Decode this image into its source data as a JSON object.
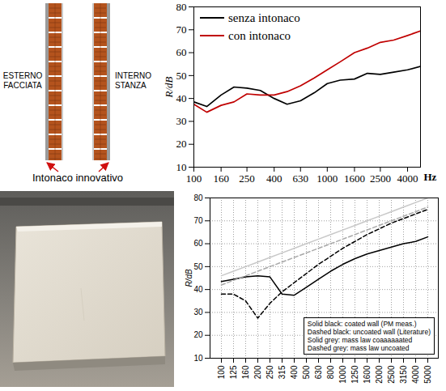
{
  "diagram": {
    "left_label": "ESTERNO FACCIATA",
    "right_label": "INTERNO STANZA",
    "caption": "Intonaco innovativo"
  },
  "chart_data": [
    {
      "type": "line",
      "x": [
        100,
        125,
        160,
        200,
        250,
        315,
        400,
        500,
        630,
        800,
        1000,
        1250,
        1600,
        2000,
        2500,
        3150,
        4000,
        5000
      ],
      "series": [
        {
          "name": "senza intonaco",
          "color": "#000000",
          "values": [
            38.5,
            36.5,
            41.5,
            45,
            44.5,
            43.5,
            40,
            37.5,
            39,
            42.5,
            46.5,
            48,
            48.5,
            51,
            50.5,
            51.5,
            52.5,
            54
          ]
        },
        {
          "name": "con intonaco",
          "color": "#c00000",
          "values": [
            37.5,
            34,
            37,
            38.5,
            42,
            41.5,
            41.5,
            43,
            45.5,
            49,
            52.5,
            56,
            60,
            62,
            64.5,
            65.5,
            67.5,
            69.5
          ]
        }
      ],
      "xlabel": "Hz",
      "ylabel": "R/dB",
      "log": "x",
      "xlim": [
        100,
        5000
      ],
      "xticks": [
        100,
        160,
        250,
        400,
        630,
        1000,
        1600,
        2500,
        4000
      ],
      "ylim": [
        10,
        80
      ],
      "yticks": [
        10,
        20,
        30,
        40,
        50,
        60,
        70,
        80
      ],
      "grid": false,
      "legend": "top-left"
    },
    {
      "type": "line",
      "categories": [
        "100",
        "125",
        "160",
        "200",
        "250",
        "315",
        "400",
        "500",
        "630",
        "800",
        "1000",
        "1250",
        "1600",
        "2000",
        "2500",
        "3150",
        "4000",
        "5000"
      ],
      "series": [
        {
          "name": "Solid black: coated wall (PM meas.)",
          "color": "#000000",
          "line_style": "solid",
          "values": [
            43.5,
            44.5,
            45.5,
            46,
            45.5,
            38,
            37.5,
            41,
            44.5,
            48,
            51,
            53.5,
            55.5,
            57,
            58.5,
            60,
            61,
            63
          ]
        },
        {
          "name": "Dashed black: uncoated wall (Literature)",
          "color": "#000000",
          "line_style": "dashed",
          "values": [
            38,
            38,
            35,
            27.5,
            34,
            39,
            43,
            47,
            51,
            54.5,
            58,
            61,
            64,
            66.5,
            69,
            71,
            73,
            75
          ]
        },
        {
          "name": "Solid grey: mass law coaaaaaated",
          "color": "#c8c8c8",
          "line_style": "solid",
          "values": [
            46,
            48,
            50,
            52,
            54,
            56,
            58,
            60,
            62,
            64,
            66,
            68,
            70,
            72,
            74,
            76,
            78,
            80
          ]
        },
        {
          "name": "Dashed grey: mass law uncoated",
          "color": "#a8a8a8",
          "line_style": "dashed",
          "values": [
            42,
            44,
            46,
            48,
            50,
            52,
            54,
            56,
            58,
            60,
            62,
            64,
            66,
            68,
            70,
            72,
            74,
            76
          ]
        }
      ],
      "ylabel": "R/dB",
      "ylim": [
        10,
        80
      ],
      "yticks": [
        10,
        20,
        30,
        40,
        50,
        60,
        70,
        80
      ],
      "grid": true,
      "legend": "bottom-right"
    }
  ]
}
